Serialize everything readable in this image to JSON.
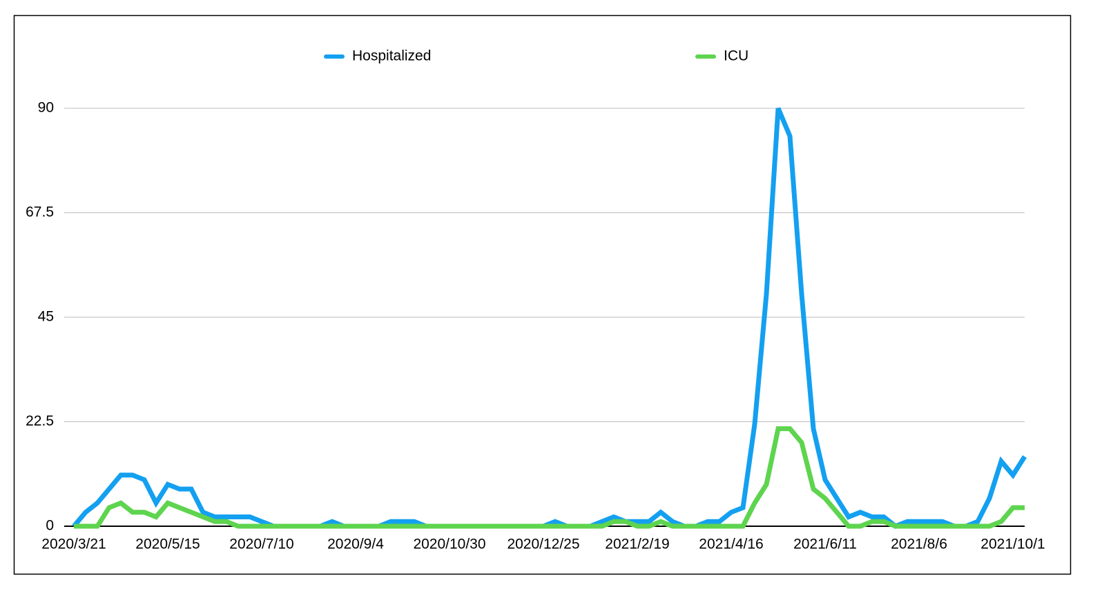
{
  "chart_data": {
    "type": "line",
    "categories": [
      "2020/3/21",
      null,
      null,
      null,
      null,
      null,
      null,
      null,
      "2020/5/15",
      null,
      null,
      null,
      null,
      null,
      null,
      null,
      "2020/7/10",
      null,
      null,
      null,
      null,
      null,
      null,
      null,
      "2020/9/4",
      null,
      null,
      null,
      null,
      null,
      null,
      null,
      "2020/10/30",
      null,
      null,
      null,
      null,
      null,
      null,
      null,
      "2020/12/25",
      null,
      null,
      null,
      null,
      null,
      null,
      null,
      "2021/2/19",
      null,
      null,
      null,
      null,
      null,
      null,
      null,
      "2021/4/16",
      null,
      null,
      null,
      null,
      null,
      null,
      null,
      "2021/6/11",
      null,
      null,
      null,
      null,
      null,
      null,
      null,
      "2021/8/6",
      null,
      null,
      null,
      null,
      null,
      null,
      null,
      "2021/10/1",
      null
    ],
    "series": [
      {
        "name": "Hospitalized",
        "color": "#14a0f0",
        "values": [
          0,
          3,
          5,
          8,
          11,
          11,
          10,
          5,
          9,
          8,
          8,
          3,
          2,
          2,
          2,
          2,
          1,
          0,
          0,
          0,
          0,
          0,
          1,
          0,
          0,
          0,
          0,
          1,
          1,
          1,
          0,
          0,
          0,
          0,
          0,
          0,
          0,
          0,
          0,
          0,
          0,
          1,
          0,
          0,
          0,
          1,
          2,
          1,
          1,
          1,
          3,
          1,
          0,
          0,
          1,
          1,
          3,
          4,
          22,
          50,
          90,
          84,
          50,
          21,
          10,
          6,
          2,
          3,
          2,
          2,
          0,
          1,
          1,
          1,
          1,
          0,
          0,
          1,
          6,
          14,
          11,
          15
        ]
      },
      {
        "name": "ICU",
        "color": "#5ed44f",
        "values": [
          0,
          0,
          0,
          4,
          5,
          3,
          3,
          2,
          5,
          4,
          3,
          2,
          1,
          1,
          0,
          0,
          0,
          0,
          0,
          0,
          0,
          0,
          0,
          0,
          0,
          0,
          0,
          0,
          0,
          0,
          0,
          0,
          0,
          0,
          0,
          0,
          0,
          0,
          0,
          0,
          0,
          0,
          0,
          0,
          0,
          0,
          1,
          1,
          0,
          0,
          1,
          0,
          0,
          0,
          0,
          0,
          0,
          0,
          5,
          9,
          21,
          21,
          18,
          8,
          6,
          3,
          0,
          0,
          1,
          1,
          0,
          0,
          0,
          0,
          0,
          0,
          0,
          0,
          0,
          1,
          4,
          4
        ]
      }
    ],
    "ylim": [
      0,
      90
    ],
    "yticks": [
      0,
      22.5,
      45,
      67.5,
      90
    ],
    "grid": true,
    "legend": "top"
  }
}
